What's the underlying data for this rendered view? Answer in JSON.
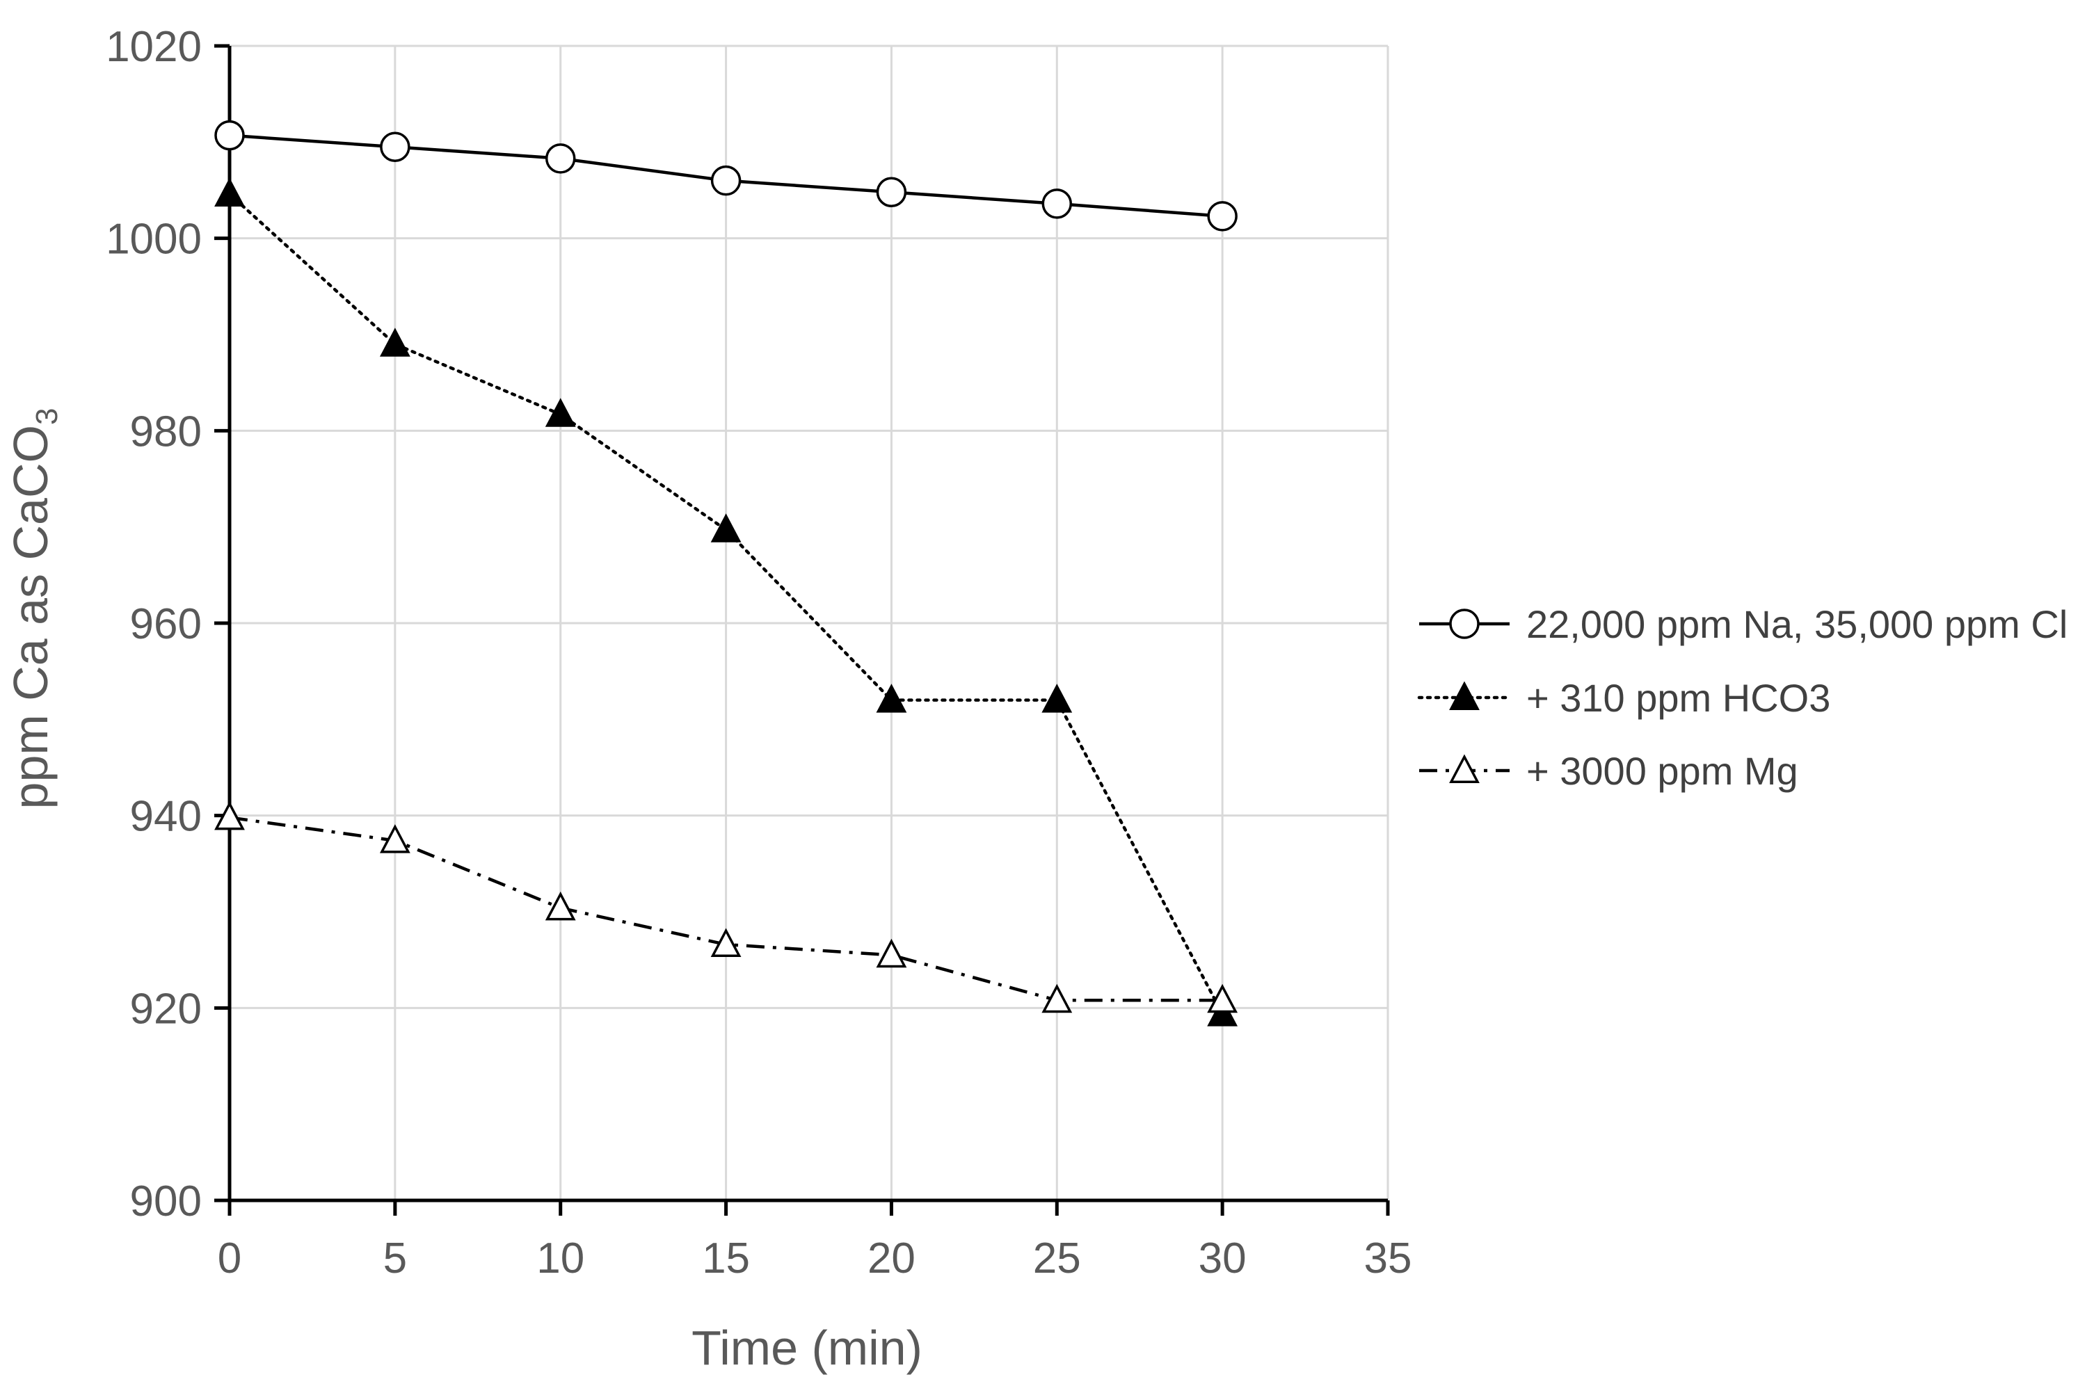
{
  "chart_data": {
    "type": "line",
    "title": "",
    "xlabel": "Time (min)",
    "ylabel": "ppm Ca as CaCO",
    "ylabel_subscript": "3",
    "xlim": [
      0,
      35
    ],
    "ylim": [
      900,
      1020
    ],
    "xticks": [
      0,
      5,
      10,
      15,
      20,
      25,
      30,
      35
    ],
    "yticks": [
      900,
      920,
      940,
      960,
      980,
      1000,
      1020
    ],
    "grid": true,
    "legend_position": "right",
    "x": [
      0,
      5,
      10,
      15,
      20,
      25,
      30
    ],
    "series": [
      {
        "name": "22,000 ppm Na, 35,000 ppm Cl",
        "values": [
          1010.7,
          1009.5,
          1008.3,
          1006.0,
          1004.8,
          1003.6,
          1002.3
        ],
        "marker": "circle-open",
        "line_style": "solid",
        "color": "#000000"
      },
      {
        "name": "+ 310 ppm HCO3",
        "values": [
          1004.6,
          989.0,
          981.7,
          969.7,
          952.0,
          952.0,
          919.4
        ],
        "marker": "triangle-filled",
        "line_style": "dotted",
        "color": "#000000"
      },
      {
        "name": "+ 3000 ppm Mg",
        "values": [
          939.8,
          937.4,
          930.4,
          926.6,
          925.5,
          920.8,
          920.8
        ],
        "marker": "triangle-open",
        "line_style": "dashdot",
        "color": "#000000"
      }
    ],
    "colors": {
      "grid": "#d9d9d9",
      "axis": "#000000",
      "text": "#595959",
      "legend_text": "#404040"
    }
  }
}
